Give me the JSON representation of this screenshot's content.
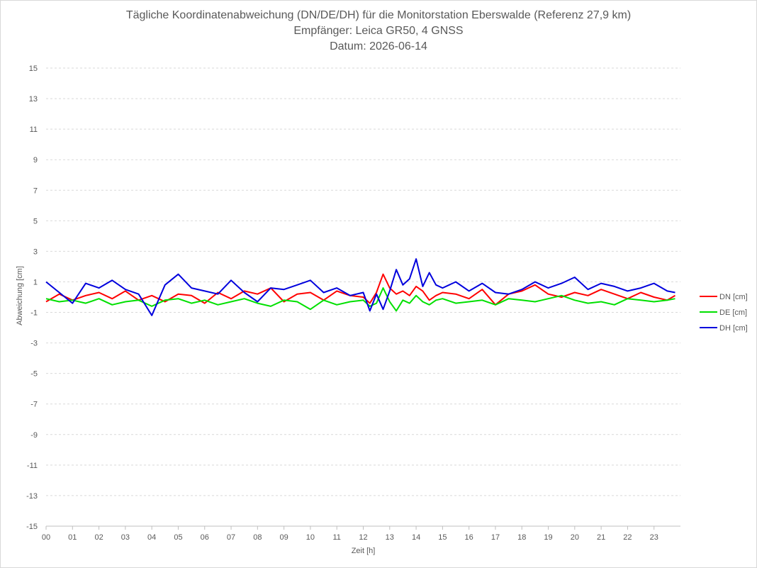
{
  "chart_data": {
    "type": "line",
    "title": "Tägliche Koordinatenabweichung (DN/DE/DH) für die Monitorstation Eberswalde (Referenz 27,9 km)",
    "subtitle": "Empfänger: Leica GR50, 4 GNSS",
    "date_line": "Datum: 2026-06-14",
    "xlabel": "Zeit [h]",
    "ylabel": "Abweichung [cm]",
    "xlim": [
      0,
      24
    ],
    "ylim": [
      -15,
      15
    ],
    "x_ticks": [
      "00",
      "01",
      "02",
      "03",
      "04",
      "05",
      "06",
      "07",
      "08",
      "09",
      "10",
      "11",
      "12",
      "13",
      "14",
      "15",
      "16",
      "17",
      "18",
      "19",
      "20",
      "21",
      "22",
      "23"
    ],
    "y_ticks": [
      15,
      13,
      11,
      9,
      7,
      5,
      3,
      1,
      -1,
      -3,
      -5,
      -7,
      -9,
      -11,
      -13,
      -15
    ],
    "grid": "horizontal-dashed",
    "legend_position": "right",
    "x": [
      0,
      0.5,
      1,
      1.5,
      2,
      2.5,
      3,
      3.5,
      4,
      4.5,
      5,
      5.5,
      6,
      6.5,
      7,
      7.5,
      8,
      8.5,
      9,
      9.5,
      10,
      10.5,
      11,
      11.5,
      12,
      12.25,
      12.5,
      12.75,
      13,
      13.25,
      13.5,
      13.75,
      14,
      14.25,
      14.5,
      14.75,
      15,
      15.5,
      16,
      16.5,
      17,
      17.5,
      18,
      18.5,
      19,
      19.5,
      20,
      20.5,
      21,
      21.5,
      22,
      22.5,
      23,
      23.5,
      23.8
    ],
    "series": [
      {
        "name": "DN [cm]",
        "color": "#ff0000",
        "values": [
          -0.3,
          0.2,
          -0.2,
          0.1,
          0.3,
          -0.1,
          0.4,
          -0.2,
          0.1,
          -0.3,
          0.2,
          0.1,
          -0.4,
          0.3,
          -0.1,
          0.4,
          0.2,
          0.6,
          -0.3,
          0.2,
          0.3,
          -0.2,
          0.4,
          0.1,
          0.0,
          -0.4,
          0.3,
          1.5,
          0.6,
          0.2,
          0.4,
          0.1,
          0.7,
          0.4,
          -0.2,
          0.1,
          0.3,
          0.2,
          -0.1,
          0.5,
          -0.5,
          0.2,
          0.4,
          0.8,
          0.2,
          0.0,
          0.3,
          0.1,
          0.5,
          0.2,
          -0.1,
          0.3,
          0.0,
          -0.2,
          0.1
        ]
      },
      {
        "name": "DE [cm]",
        "color": "#00e000",
        "values": [
          -0.1,
          -0.3,
          -0.2,
          -0.4,
          -0.1,
          -0.5,
          -0.3,
          -0.2,
          -0.6,
          -0.2,
          -0.1,
          -0.4,
          -0.2,
          -0.5,
          -0.3,
          -0.1,
          -0.4,
          -0.6,
          -0.2,
          -0.3,
          -0.8,
          -0.2,
          -0.5,
          -0.3,
          -0.2,
          -0.6,
          -0.4,
          0.6,
          -0.3,
          -0.9,
          -0.2,
          -0.4,
          0.1,
          -0.3,
          -0.5,
          -0.2,
          -0.1,
          -0.4,
          -0.3,
          -0.2,
          -0.5,
          -0.1,
          -0.2,
          -0.3,
          -0.1,
          0.1,
          -0.2,
          -0.4,
          -0.3,
          -0.5,
          -0.1,
          -0.2,
          -0.3,
          -0.2,
          -0.1
        ]
      },
      {
        "name": "DH [cm]",
        "color": "#0000dd",
        "values": [
          1.0,
          0.3,
          -0.4,
          0.9,
          0.6,
          1.1,
          0.5,
          0.2,
          -1.2,
          0.8,
          1.5,
          0.6,
          0.4,
          0.2,
          1.1,
          0.3,
          -0.3,
          0.6,
          0.5,
          0.8,
          1.1,
          0.3,
          0.6,
          0.1,
          0.3,
          -0.9,
          0.2,
          -0.8,
          0.4,
          1.8,
          0.8,
          1.2,
          2.5,
          0.7,
          1.6,
          0.8,
          0.6,
          1.0,
          0.4,
          0.9,
          0.3,
          0.2,
          0.5,
          1.0,
          0.6,
          0.9,
          1.3,
          0.5,
          0.9,
          0.7,
          0.4,
          0.6,
          0.9,
          0.4,
          0.3
        ]
      }
    ]
  }
}
